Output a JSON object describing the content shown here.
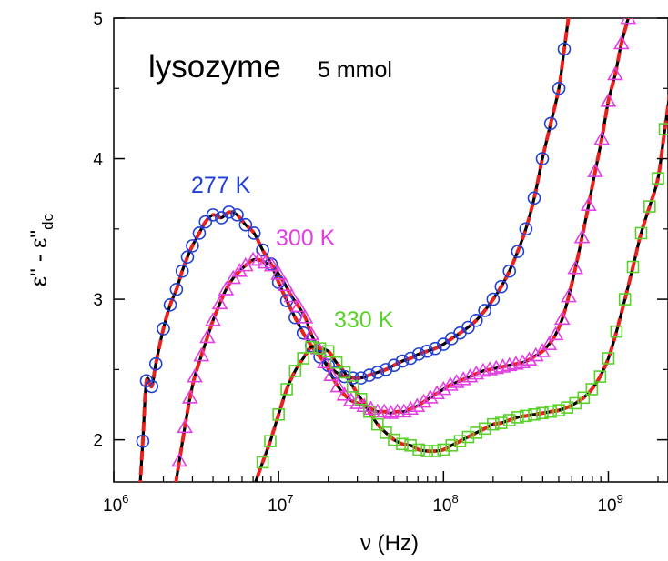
{
  "chart_data": {
    "type": "scatter",
    "title": "lysozyme",
    "title_note": "5 mmol",
    "xlabel": "ν (Hz)",
    "ylabel": "ε\" - ε\"dc",
    "ylabel_sub": "dc",
    "x_scale": "log",
    "xlim": [
      1000000,
      2300000000
    ],
    "ylim": [
      1.7,
      5.0
    ],
    "x_ticks": [
      {
        "value": 1000000,
        "base": "10",
        "exp": "6"
      },
      {
        "value": 10000000,
        "base": "10",
        "exp": "7"
      },
      {
        "value": 100000000,
        "base": "10",
        "exp": "8"
      },
      {
        "value": 1000000000,
        "base": "10",
        "exp": "9"
      }
    ],
    "y_ticks": [
      2,
      3,
      4,
      5
    ],
    "grid": false,
    "fit_line_colors": {
      "model_a": "#000000",
      "model_b": "#e8231e"
    },
    "series": [
      {
        "name": "277 K",
        "marker": "circle",
        "color": "#1f3fd6",
        "x": [
          1500000,
          1580000,
          1700000,
          1800000,
          2000000,
          2200000,
          2400000,
          2600000,
          2800000,
          3000000,
          3300000,
          3600000,
          4000000,
          4500000,
          5000000,
          5600000,
          6300000,
          7100000,
          8000000,
          9000000,
          10000000,
          11200000,
          12600000,
          14100000,
          15800000,
          17800000,
          20000000,
          22400000,
          25100000,
          28200000,
          31600000,
          35500000,
          39800000,
          44700000,
          50100000,
          56200000,
          63100000,
          70800000,
          79400000,
          89100000,
          100000000,
          112000000,
          126000000,
          141000000,
          158000000,
          178000000,
          200000000,
          224000000,
          251000000,
          282000000,
          316000000,
          355000000,
          398000000,
          447000000,
          501000000,
          540000000
        ],
        "y": [
          1.99,
          2.42,
          2.38,
          2.54,
          2.79,
          2.96,
          3.07,
          3.2,
          3.3,
          3.38,
          3.47,
          3.55,
          3.6,
          3.58,
          3.62,
          3.6,
          3.53,
          3.47,
          3.35,
          3.25,
          3.12,
          2.99,
          2.87,
          2.76,
          2.67,
          2.59,
          2.53,
          2.48,
          2.45,
          2.44,
          2.44,
          2.46,
          2.48,
          2.5,
          2.53,
          2.56,
          2.58,
          2.61,
          2.63,
          2.65,
          2.68,
          2.72,
          2.76,
          2.8,
          2.85,
          2.92,
          3.0,
          3.09,
          3.2,
          3.34,
          3.5,
          3.72,
          4.0,
          4.25,
          4.5,
          4.78
        ]
      },
      {
        "name": "300 K",
        "marker": "triangle",
        "color": "#e23fe2",
        "x": [
          2500000,
          2700000,
          2900000,
          3100000,
          3400000,
          3700000,
          4000000,
          4400000,
          4800000,
          5300000,
          5800000,
          6300000,
          7000000,
          7600000,
          8300000,
          9100000,
          10000000,
          11000000,
          12000000,
          13200000,
          14500000,
          15800000,
          17400000,
          19100000,
          20900000,
          22900000,
          25100000,
          27500000,
          30200000,
          33100000,
          36300000,
          39800000,
          43700000,
          47900000,
          52500000,
          57500000,
          63100000,
          69200000,
          75900000,
          83200000,
          91200000,
          100000000,
          110000000,
          120000000,
          132000000,
          145000000,
          158000000,
          174000000,
          191000000,
          209000000,
          229000000,
          251000000,
          275000000,
          302000000,
          331000000,
          363000000,
          398000000,
          437000000,
          479000000,
          525000000,
          575000000,
          631000000,
          692000000,
          759000000,
          832000000,
          912000000,
          1000000000,
          1100000000,
          1200000000,
          1320000000
        ],
        "y": [
          1.85,
          2.09,
          2.3,
          2.45,
          2.6,
          2.73,
          2.85,
          2.97,
          3.07,
          3.15,
          3.2,
          3.24,
          3.28,
          3.28,
          3.26,
          3.24,
          3.18,
          3.1,
          3.02,
          2.95,
          2.87,
          2.75,
          2.65,
          2.55,
          2.46,
          2.38,
          2.32,
          2.28,
          2.26,
          2.24,
          2.22,
          2.2,
          2.2,
          2.19,
          2.2,
          2.2,
          2.22,
          2.24,
          2.27,
          2.3,
          2.33,
          2.36,
          2.39,
          2.41,
          2.43,
          2.45,
          2.47,
          2.49,
          2.5,
          2.51,
          2.52,
          2.53,
          2.54,
          2.55,
          2.57,
          2.6,
          2.63,
          2.68,
          2.75,
          2.86,
          3.02,
          3.22,
          3.44,
          3.67,
          3.91,
          4.14,
          4.41,
          4.6,
          4.82,
          5.0
        ]
      },
      {
        "name": "330 K",
        "marker": "square",
        "color": "#5ad12a",
        "x": [
          8000000,
          8900000,
          10000000,
          11200000,
          12600000,
          14100000,
          15800000,
          17800000,
          20000000,
          22400000,
          25100000,
          28200000,
          31600000,
          35500000,
          39800000,
          44700000,
          50100000,
          56200000,
          63100000,
          70800000,
          79400000,
          89100000,
          100000000,
          112000000,
          126000000,
          141000000,
          158000000,
          178000000,
          200000000,
          224000000,
          251000000,
          282000000,
          316000000,
          355000000,
          398000000,
          447000000,
          501000000,
          562000000,
          631000000,
          708000000,
          794000000,
          891000000,
          1000000000,
          1120000000,
          1260000000,
          1410000000,
          1580000000,
          1780000000,
          2000000000,
          2200000000
        ],
        "y": [
          1.84,
          1.99,
          2.18,
          2.36,
          2.49,
          2.58,
          2.66,
          2.65,
          2.63,
          2.55,
          2.48,
          2.38,
          2.29,
          2.2,
          2.11,
          2.05,
          2.0,
          1.97,
          1.96,
          1.93,
          1.92,
          1.92,
          1.93,
          1.96,
          1.99,
          2.02,
          2.05,
          2.08,
          2.11,
          2.12,
          2.14,
          2.16,
          2.17,
          2.18,
          2.19,
          2.2,
          2.21,
          2.23,
          2.26,
          2.3,
          2.36,
          2.45,
          2.58,
          2.77,
          3.0,
          3.23,
          3.47,
          3.66,
          3.86,
          4.21
        ]
      }
    ]
  }
}
